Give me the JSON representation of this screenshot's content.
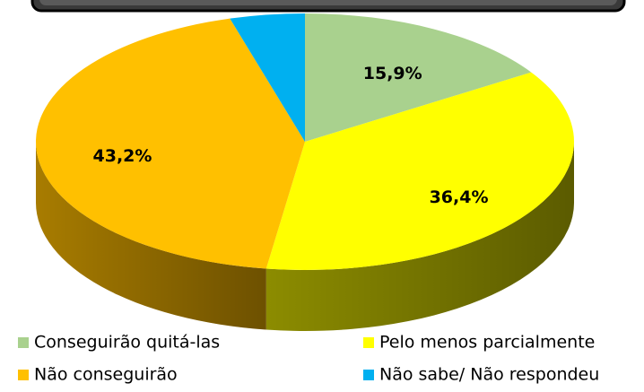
{
  "chart_data": {
    "type": "pie",
    "categories": [
      "Conseguirão quitá-las",
      "Pelo menos parcialmente",
      "Não conseguirão",
      "Não sabe/ Não respondeu"
    ],
    "values": [
      15.9,
      36.4,
      43.2,
      4.5
    ],
    "value_labels": [
      "15,9%",
      "36,4%",
      "43,2%",
      null
    ],
    "colors": [
      "#a9d18e",
      "#ffff00",
      "#ffc000",
      "#00b0f0"
    ],
    "side_colors": [
      "#6f8a5c",
      "#8c8c00",
      "#a87c00",
      "#0074a0"
    ]
  }
}
